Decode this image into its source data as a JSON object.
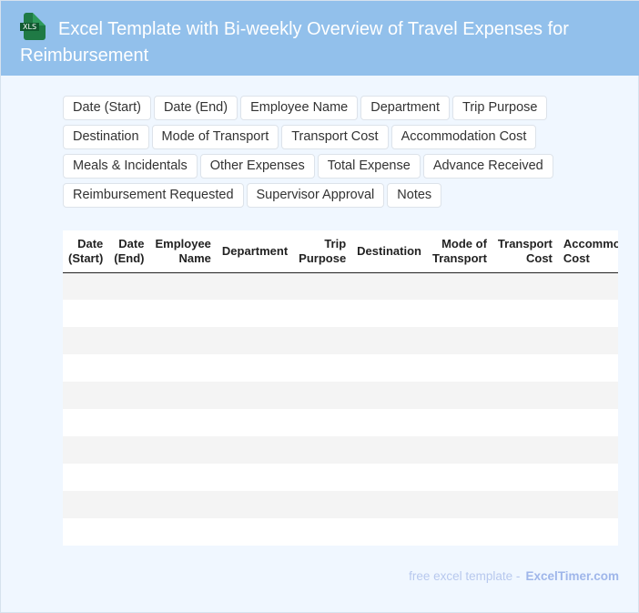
{
  "header": {
    "title": "Excel Template with Bi-weekly Overview of Travel Expenses for Reimbursement",
    "icon": "xls-file-icon",
    "icon_label": "XLS"
  },
  "tags": [
    "Date (Start)",
    "Date (End)",
    "Employee Name",
    "Department",
    "Trip Purpose",
    "Destination",
    "Mode of Transport",
    "Transport Cost",
    "Accommodation Cost",
    "Meals & Incidentals",
    "Other Expenses",
    "Total Expense",
    "Advance Received",
    "Reimbursement Requested",
    "Supervisor Approval",
    "Notes"
  ],
  "table": {
    "columns": [
      "Date (Start)",
      "Date (End)",
      "Employee Name",
      "Department",
      "Trip Purpose",
      "Destination",
      "Mode of Transport",
      "Transport Cost",
      "Accommodation Cost"
    ],
    "row_count": 10
  },
  "footer": {
    "text": "free excel template -",
    "brand": "ExcelTimer.com"
  }
}
